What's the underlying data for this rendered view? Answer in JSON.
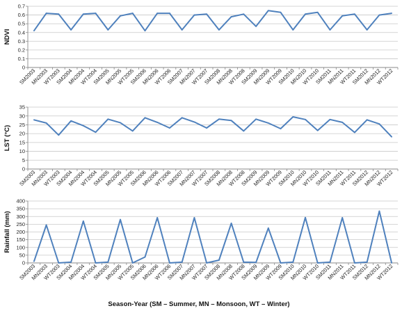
{
  "chart_data": [
    {
      "type": "line",
      "ylabel": "NDVI",
      "ylim": [
        0,
        0.7
      ],
      "yticks": [
        "0",
        "0.1",
        "0.2",
        "0.3",
        "0.4",
        "0.5",
        "0.6",
        "0.7"
      ],
      "grid": true,
      "categories": [
        "SM2003",
        "MN2003",
        "WT2003",
        "SM2004",
        "MN2004",
        "WT2004",
        "SM2005",
        "MN2005",
        "WT2005",
        "SM2006",
        "MN2006",
        "WT2006",
        "SM2007",
        "MN2007",
        "WT2007",
        "SM2008",
        "MN2008",
        "WT2008",
        "SM2009",
        "MN2009",
        "WT2009",
        "SM2010",
        "MN2010",
        "WT2010",
        "SM2011",
        "MN2011",
        "WT2011",
        "SM2012",
        "MN2012",
        "WT2012"
      ],
      "values": [
        0.42,
        0.62,
        0.61,
        0.43,
        0.61,
        0.62,
        0.43,
        0.59,
        0.62,
        0.42,
        0.62,
        0.62,
        0.43,
        0.6,
        0.61,
        0.43,
        0.58,
        0.61,
        0.47,
        0.65,
        0.63,
        0.43,
        0.61,
        0.63,
        0.43,
        0.59,
        0.61,
        0.43,
        0.6,
        0.62
      ]
    },
    {
      "type": "line",
      "ylabel": "LST (°C)",
      "ylim": [
        0,
        35
      ],
      "yticks": [
        "0",
        "5",
        "10",
        "15",
        "20",
        "25",
        "30",
        "35"
      ],
      "grid": true,
      "categories": [
        "SM2003",
        "MN2003",
        "WT2003",
        "SM2004",
        "MN2004",
        "WT2004",
        "SM2005",
        "MN2005",
        "WT2005",
        "SM2006",
        "MN2006",
        "WT2006",
        "SM2007",
        "MN2007",
        "WT2007",
        "SM2008",
        "MN2008",
        "WT2008",
        "SM2009",
        "MN2009",
        "WT2009",
        "SM2010",
        "MN2010",
        "WT2010",
        "SM2011",
        "MN2011",
        "WT2011",
        "SM2012",
        "MN2012",
        "WT2012"
      ],
      "values": [
        27.8,
        26,
        19.2,
        27.2,
        24.5,
        20.8,
        28.2,
        26.2,
        21.5,
        29,
        26.4,
        23.2,
        29,
        26.6,
        23.2,
        28.2,
        27.4,
        21.5,
        28.2,
        26,
        22.8,
        29.5,
        28,
        21.8,
        28,
        26.4,
        20.7,
        27.8,
        25.5,
        18.2
      ]
    },
    {
      "type": "line",
      "ylabel": "Rainfall (mm)",
      "xlabel": "Season-Year (SM – Summer, MN – Monsoon, WT – Winter)",
      "ylim": [
        0,
        400
      ],
      "yticks": [
        "0",
        "50",
        "100",
        "150",
        "200",
        "250",
        "300",
        "350",
        "400"
      ],
      "grid": true,
      "categories": [
        "SM2003",
        "MN2003",
        "WT2003",
        "SM2004",
        "MN2004",
        "WT2004",
        "SM2005",
        "MN2005",
        "WT2005",
        "SM2006",
        "MN2006",
        "WT2006",
        "SM2007",
        "MN2007",
        "WT2007",
        "SM2008",
        "MN2008",
        "WT2008",
        "SM2009",
        "MN2009",
        "WT2009",
        "SM2010",
        "MN2010",
        "WT2010",
        "SM2011",
        "MN2011",
        "WT2011",
        "SM2012",
        "MN2012",
        "WT2012"
      ],
      "values": [
        10,
        245,
        0,
        5,
        270,
        0,
        5,
        280,
        0,
        38,
        292,
        0,
        5,
        292,
        0,
        18,
        256,
        5,
        3,
        225,
        0,
        5,
        293,
        0,
        5,
        292,
        0,
        5,
        335,
        0
      ]
    }
  ],
  "style": {
    "line_color": "#4f81bd",
    "grid_color": "#c8c8c8",
    "axis_color": "#888888"
  }
}
